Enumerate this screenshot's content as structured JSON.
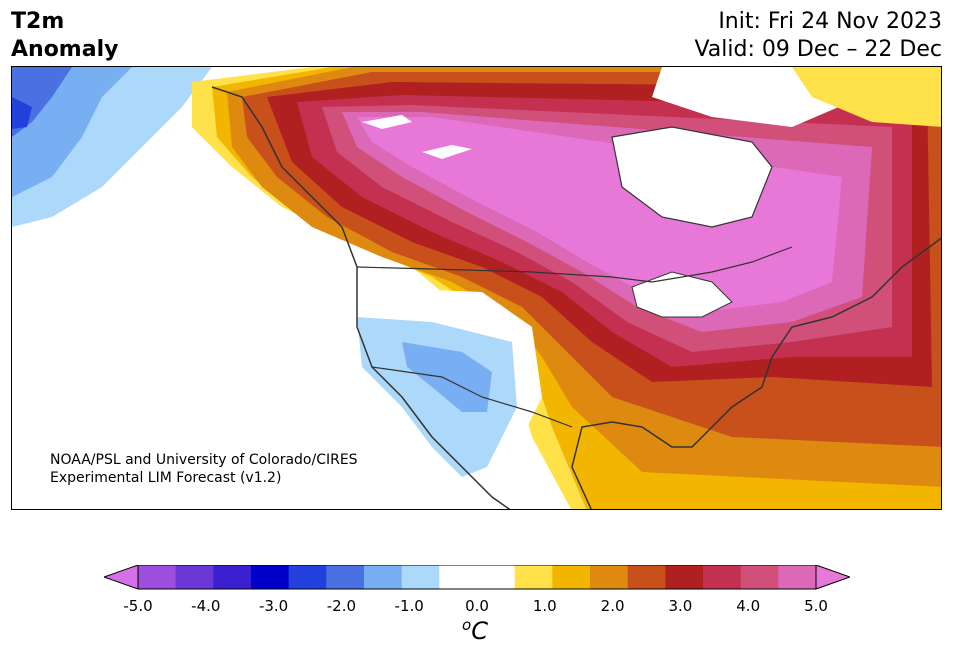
{
  "header": {
    "title_line1": "T2m",
    "title_line2": "Anomaly",
    "init": "Init: Fri 24 Nov 2023",
    "valid": "Valid: 09 Dec – 22 Dec"
  },
  "map": {
    "credit_line1": "NOAA/PSL and University of Colorado/CIRES",
    "credit_line2": "Experimental LIM Forecast (v1.2)"
  },
  "colorbar": {
    "unit_base": "C",
    "unit_sup": "o",
    "ticks": [
      "-5.0",
      "-4.0",
      "-3.0",
      "-2.0",
      "-1.0",
      "0.0",
      "1.0",
      "2.0",
      "3.0",
      "4.0",
      "5.0"
    ],
    "colors": [
      "#d470e8",
      "#9b4fdc",
      "#6b38d8",
      "#3a20d0",
      "#0000cd",
      "#2440dc",
      "#4a70e2",
      "#78aef2",
      "#acd8fa",
      "#ffffff",
      "#ffffff",
      "#ffe24a",
      "#f2b600",
      "#de8a10",
      "#c8501a",
      "#b02020",
      "#c43050",
      "#d0507a",
      "#dc68b8",
      "#e878d8"
    ]
  },
  "colors": {
    "background": "#ffffff",
    "border": "#000000"
  }
}
